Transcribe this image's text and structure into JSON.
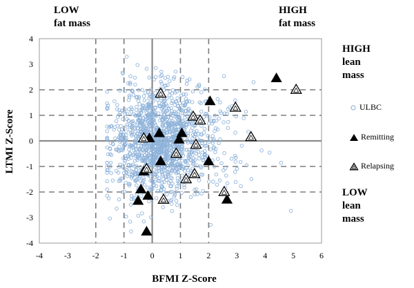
{
  "chart_data": {
    "type": "scatter",
    "xlabel": "BFMI Z-Score",
    "ylabel": "LTMI Z-Score",
    "xlim": [
      -4,
      6
    ],
    "ylim": [
      -4,
      4
    ],
    "x_ticks": [
      -4,
      -3,
      -2,
      -1,
      0,
      1,
      2,
      3,
      4,
      5,
      6
    ],
    "y_ticks": [
      -4,
      -3,
      -2,
      -1,
      0,
      1,
      2,
      3,
      4
    ],
    "reference_lines_x": [
      -2,
      -1,
      1,
      2
    ],
    "reference_lines_y": [
      -2,
      -1,
      1,
      2
    ],
    "quadrant_labels": {
      "top_left": [
        "LOW",
        "fat mass"
      ],
      "top_right": [
        "HIGH",
        "fat mass"
      ],
      "right_top": [
        "HIGH",
        "lean",
        "mass"
      ],
      "right_bottom": [
        "LOW",
        "lean",
        "mass"
      ]
    },
    "series": [
      {
        "name": "ULBC",
        "marker": "open-circle",
        "color": "#8fb3da",
        "cloud": {
          "approx_count": 1400,
          "center": [
            0.1,
            0.0
          ],
          "spread_x": 0.75,
          "spread_y": 1.05,
          "x_range": [
            -1.6,
            5.9
          ],
          "y_range": [
            -4.0,
            4.0
          ]
        }
      },
      {
        "name": "Remitting",
        "marker": "filled-triangle",
        "color": "#000000",
        "points": [
          [
            4.4,
            2.45
          ],
          [
            2.05,
            1.55
          ],
          [
            1.05,
            0.3
          ],
          [
            0.95,
            0.05
          ],
          [
            2.0,
            -0.8
          ],
          [
            0.3,
            -0.8
          ],
          [
            -0.3,
            -1.2
          ],
          [
            -0.4,
            -1.9
          ],
          [
            -0.5,
            -2.35
          ],
          [
            -0.15,
            -2.15
          ],
          [
            2.65,
            -2.3
          ],
          [
            -0.2,
            -3.55
          ],
          [
            -0.1,
            0.1
          ],
          [
            0.25,
            0.3
          ]
        ]
      },
      {
        "name": "Relapsing",
        "marker": "open-triangle",
        "color": "#000000",
        "points": [
          [
            5.1,
            2.0
          ],
          [
            0.3,
            1.85
          ],
          [
            2.95,
            1.3
          ],
          [
            1.45,
            0.95
          ],
          [
            1.7,
            0.8
          ],
          [
            3.5,
            0.15
          ],
          [
            1.55,
            -0.15
          ],
          [
            -0.3,
            0.1
          ],
          [
            0.85,
            -0.5
          ],
          [
            -0.2,
            -1.1
          ],
          [
            1.5,
            -1.3
          ],
          [
            1.2,
            -1.5
          ],
          [
            2.55,
            -2.0
          ],
          [
            0.4,
            -2.3
          ]
        ]
      }
    ]
  }
}
